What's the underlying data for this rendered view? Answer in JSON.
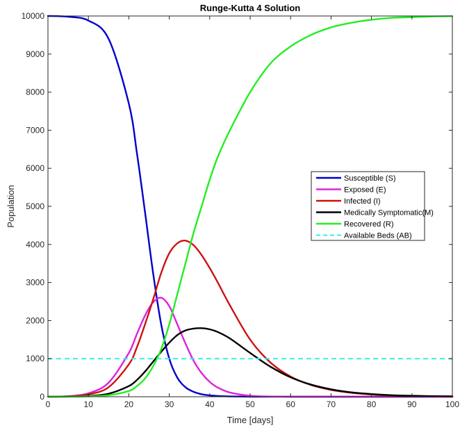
{
  "chart_data": {
    "type": "line",
    "title": "Runge-Kutta 4 Solution",
    "xlabel": "Time [days]",
    "ylabel": "Population",
    "xlim": [
      0,
      100
    ],
    "ylim": [
      0,
      10000
    ],
    "xticks": [
      0,
      10,
      20,
      30,
      40,
      50,
      60,
      70,
      80,
      90,
      100
    ],
    "yticks": [
      0,
      1000,
      2000,
      3000,
      4000,
      5000,
      6000,
      7000,
      8000,
      9000,
      10000
    ],
    "grid": false,
    "legend_position": "right",
    "x": [
      0,
      5,
      10,
      15,
      20,
      22,
      24,
      26,
      28,
      30,
      32,
      34,
      36,
      38,
      40,
      42,
      45,
      50,
      55,
      60,
      65,
      70,
      75,
      80,
      85,
      90,
      95,
      100
    ],
    "series": [
      {
        "name": "Susceptible (S)",
        "color": "#0000cc",
        "dash": "solid",
        "values": [
          10000,
          9980,
          9880,
          9400,
          7700,
          6400,
          4850,
          3250,
          1900,
          1000,
          500,
          250,
          130,
          65,
          35,
          20,
          8,
          2,
          1,
          0,
          0,
          0,
          0,
          0,
          0,
          0,
          0,
          0
        ]
      },
      {
        "name": "Exposed (E)",
        "color": "#dd22dd",
        "dash": "solid",
        "values": [
          0,
          15,
          90,
          370,
          1150,
          1650,
          2130,
          2480,
          2600,
          2380,
          1900,
          1400,
          950,
          620,
          390,
          240,
          110,
          25,
          5,
          1,
          0,
          0,
          0,
          0,
          0,
          0,
          0,
          0
        ]
      },
      {
        "name": "Infected (I)",
        "color": "#cc1111",
        "dash": "solid",
        "values": [
          0,
          10,
          60,
          250,
          850,
          1300,
          1900,
          2550,
          3250,
          3770,
          4030,
          4100,
          3980,
          3720,
          3380,
          3000,
          2400,
          1500,
          900,
          530,
          310,
          180,
          105,
          60,
          35,
          20,
          12,
          7
        ]
      },
      {
        "name": "Medically Symptomatic(M)",
        "color": "#000000",
        "dash": "solid",
        "values": [
          0,
          3,
          20,
          80,
          280,
          440,
          660,
          920,
          1180,
          1420,
          1620,
          1740,
          1790,
          1800,
          1770,
          1700,
          1530,
          1150,
          790,
          510,
          320,
          195,
          115,
          70,
          40,
          25,
          15,
          10
        ]
      },
      {
        "name": "Recovered (R)",
        "color": "#22ee22",
        "dash": "solid",
        "values": [
          0,
          2,
          10,
          40,
          150,
          280,
          480,
          800,
          1250,
          1900,
          2700,
          3500,
          4300,
          5000,
          5700,
          6300,
          7000,
          8000,
          8750,
          9200,
          9500,
          9700,
          9820,
          9900,
          9950,
          9970,
          9985,
          9995
        ]
      },
      {
        "name": "Available Beds (AB)",
        "color": "#33eeee",
        "dash": "dashed",
        "values": [
          1000,
          1000,
          1000,
          1000,
          1000,
          1000,
          1000,
          1000,
          1000,
          1000,
          1000,
          1000,
          1000,
          1000,
          1000,
          1000,
          1000,
          1000,
          1000,
          1000,
          1000,
          1000,
          1000,
          1000,
          1000,
          1000,
          1000,
          1000
        ]
      }
    ]
  }
}
